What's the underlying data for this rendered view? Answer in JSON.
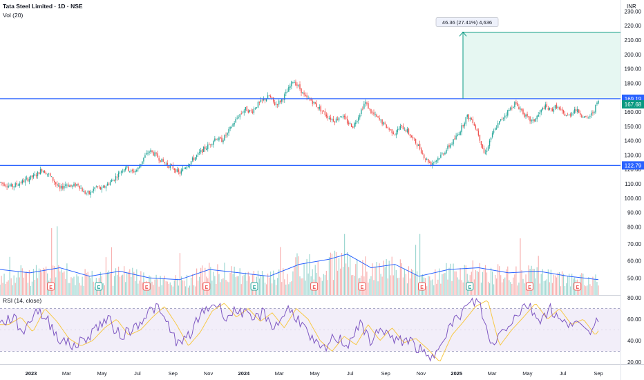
{
  "chart_data": {
    "type": "candlestick",
    "title": "Tata Steel Limited · 1D · NSE",
    "volume_indicator": "Vol (20)",
    "rsi_indicator": "RSI (14, close)",
    "currency": "INR",
    "price_axis": {
      "ticks": [
        "230.00",
        "220.00",
        "210.00",
        "200.00",
        "190.00",
        "180.00",
        "170.00",
        "160.00",
        "150.00",
        "140.00",
        "130.00",
        "120.00",
        "110.00",
        "100.00",
        "90.00"
      ],
      "ylim": [
        85,
        235
      ]
    },
    "volume_axis": {
      "ticks": [
        "80.00",
        "70.00",
        "60.00",
        "50.00"
      ],
      "ylim": [
        40,
        85
      ]
    },
    "rsi_axis": {
      "ticks": [
        "80.00",
        "60.00",
        "40.00",
        "20.00"
      ],
      "ylim": [
        18,
        82
      ],
      "upper_band": 70,
      "lower_band": 30
    },
    "time_labels": [
      {
        "label": "2023",
        "year": true
      },
      {
        "label": "Mar",
        "year": false
      },
      {
        "label": "May",
        "year": false
      },
      {
        "label": "Jul",
        "year": false
      },
      {
        "label": "Sep",
        "year": false
      },
      {
        "label": "Nov",
        "year": false
      },
      {
        "label": "2024",
        "year": true
      },
      {
        "label": "Mar",
        "year": false
      },
      {
        "label": "May",
        "year": false
      },
      {
        "label": "Jul",
        "year": false
      },
      {
        "label": "Sep",
        "year": false
      },
      {
        "label": "Nov",
        "year": false
      },
      {
        "label": "2025",
        "year": true
      },
      {
        "label": "Mar",
        "year": false
      },
      {
        "label": "May",
        "year": false
      },
      {
        "label": "Jul",
        "year": false
      },
      {
        "label": "Sep",
        "year": false
      }
    ],
    "horizontal_lines": [
      {
        "value": 169.19,
        "label": "169.19"
      },
      {
        "value": 122.79,
        "label": "122.79"
      }
    ],
    "last_price": {
      "value": 167.68,
      "label": "167.68"
    },
    "measure": {
      "from": 169.19,
      "to": 215.55,
      "label": "46.36 (27.41%) 4,636"
    },
    "price_path": [
      [
        0,
        111
      ],
      [
        2,
        108
      ],
      [
        4,
        112
      ],
      [
        6,
        116
      ],
      [
        7,
        120
      ],
      [
        8,
        117
      ],
      [
        9,
        112
      ],
      [
        10,
        106
      ],
      [
        11,
        110
      ],
      [
        12,
        108
      ],
      [
        13,
        110
      ],
      [
        14,
        104
      ],
      [
        15,
        103
      ],
      [
        16,
        108
      ],
      [
        17,
        106
      ],
      [
        18,
        110
      ],
      [
        19,
        113
      ],
      [
        20,
        118
      ],
      [
        21,
        122
      ],
      [
        22,
        118
      ],
      [
        23,
        120
      ],
      [
        24,
        128
      ],
      [
        25,
        133
      ],
      [
        26,
        130
      ],
      [
        27,
        126
      ],
      [
        28,
        123
      ],
      [
        29,
        121
      ],
      [
        30,
        117
      ],
      [
        31,
        122
      ],
      [
        32,
        126
      ],
      [
        33,
        130
      ],
      [
        34,
        134
      ],
      [
        35,
        137
      ],
      [
        36,
        142
      ],
      [
        37,
        140
      ],
      [
        38,
        145
      ],
      [
        39,
        152
      ],
      [
        40,
        158
      ],
      [
        41,
        162
      ],
      [
        42,
        160
      ],
      [
        43,
        165
      ],
      [
        44,
        168
      ],
      [
        45,
        171
      ],
      [
        46,
        165
      ],
      [
        47,
        168
      ],
      [
        48,
        174
      ],
      [
        49,
        182
      ],
      [
        50,
        177
      ],
      [
        51,
        170
      ],
      [
        52,
        168
      ],
      [
        53,
        164
      ],
      [
        54,
        160
      ],
      [
        55,
        156
      ],
      [
        56,
        154
      ],
      [
        57,
        158
      ],
      [
        58,
        153
      ],
      [
        59,
        150
      ],
      [
        60,
        158
      ],
      [
        61,
        167
      ],
      [
        62,
        160
      ],
      [
        63,
        156
      ],
      [
        64,
        152
      ],
      [
        65,
        148
      ],
      [
        66,
        145
      ],
      [
        67,
        150
      ],
      [
        68,
        147
      ],
      [
        69,
        141
      ],
      [
        70,
        136
      ],
      [
        71,
        128
      ],
      [
        72,
        124
      ],
      [
        73,
        127
      ],
      [
        74,
        131
      ],
      [
        75,
        136
      ],
      [
        76,
        141
      ],
      [
        77,
        148
      ],
      [
        78,
        157
      ],
      [
        79,
        154
      ],
      [
        80,
        144
      ],
      [
        81,
        130
      ],
      [
        82,
        142
      ],
      [
        83,
        150
      ],
      [
        84,
        156
      ],
      [
        85,
        161
      ],
      [
        86,
        166
      ],
      [
        87,
        162
      ],
      [
        88,
        156
      ],
      [
        89,
        153
      ],
      [
        90,
        158
      ],
      [
        91,
        164
      ],
      [
        92,
        161
      ],
      [
        93,
        164
      ],
      [
        94,
        159
      ],
      [
        95,
        157
      ],
      [
        96,
        162
      ],
      [
        97,
        159
      ],
      [
        98,
        155
      ],
      [
        99,
        159
      ],
      [
        100,
        167.68
      ]
    ],
    "volume_ma": [
      [
        0,
        55
      ],
      [
        5,
        53
      ],
      [
        10,
        56
      ],
      [
        15,
        51
      ],
      [
        20,
        54
      ],
      [
        25,
        50
      ],
      [
        30,
        49
      ],
      [
        35,
        55
      ],
      [
        40,
        53
      ],
      [
        45,
        51
      ],
      [
        50,
        58
      ],
      [
        55,
        61
      ],
      [
        58,
        64
      ],
      [
        62,
        56
      ],
      [
        66,
        58
      ],
      [
        70,
        51
      ],
      [
        75,
        55
      ],
      [
        80,
        56
      ],
      [
        85,
        53
      ],
      [
        90,
        54
      ],
      [
        95,
        51
      ],
      [
        100,
        49
      ]
    ],
    "rsi_values": [
      [
        0,
        55
      ],
      [
        2,
        62
      ],
      [
        4,
        48
      ],
      [
        6,
        70
      ],
      [
        8,
        58
      ],
      [
        10,
        42
      ],
      [
        12,
        35
      ],
      [
        14,
        40
      ],
      [
        16,
        52
      ],
      [
        18,
        60
      ],
      [
        20,
        45
      ],
      [
        22,
        50
      ],
      [
        24,
        62
      ],
      [
        26,
        72
      ],
      [
        28,
        55
      ],
      [
        30,
        35
      ],
      [
        32,
        48
      ],
      [
        34,
        68
      ],
      [
        36,
        75
      ],
      [
        38,
        62
      ],
      [
        40,
        70
      ],
      [
        42,
        58
      ],
      [
        44,
        66
      ],
      [
        46,
        52
      ],
      [
        48,
        70
      ],
      [
        50,
        60
      ],
      [
        52,
        40
      ],
      [
        54,
        30
      ],
      [
        56,
        44
      ],
      [
        58,
        36
      ],
      [
        60,
        55
      ],
      [
        62,
        40
      ],
      [
        64,
        52
      ],
      [
        66,
        38
      ],
      [
        68,
        42
      ],
      [
        70,
        32
      ],
      [
        72,
        20
      ],
      [
        74,
        45
      ],
      [
        76,
        58
      ],
      [
        78,
        72
      ],
      [
        80,
        78
      ],
      [
        82,
        35
      ],
      [
        84,
        50
      ],
      [
        86,
        62
      ],
      [
        88,
        75
      ],
      [
        90,
        60
      ],
      [
        92,
        70
      ],
      [
        94,
        55
      ],
      [
        96,
        60
      ],
      [
        98,
        45
      ],
      [
        100,
        62
      ]
    ],
    "earnings_markers": [
      {
        "pos": 8.5,
        "type": "red"
      },
      {
        "pos": 16.5,
        "type": "green"
      },
      {
        "pos": 24.5,
        "type": "red"
      },
      {
        "pos": 34.5,
        "type": "red"
      },
      {
        "pos": 42.5,
        "type": "green"
      },
      {
        "pos": 52.5,
        "type": "red"
      },
      {
        "pos": 60.5,
        "type": "red"
      },
      {
        "pos": 70.5,
        "type": "red"
      },
      {
        "pos": 78.5,
        "type": "green"
      },
      {
        "pos": 88.5,
        "type": "red"
      },
      {
        "pos": 96.5,
        "type": "red"
      }
    ],
    "earnings_letter": "E",
    "colors": {
      "up": "#26a69a",
      "down": "#ef5350",
      "level_line": "#2962ff",
      "last_price_bg": "#089981",
      "level_bg": "#2962ff",
      "measure_fill": "#e6f7f2",
      "measure_line": "#089981",
      "volume_ma": "#2962ff",
      "rsi_line": "#7e57c2",
      "rsi_ma": "#f7c948",
      "rsi_band": "#ede7f6"
    },
    "legend_placement": "top-left"
  }
}
